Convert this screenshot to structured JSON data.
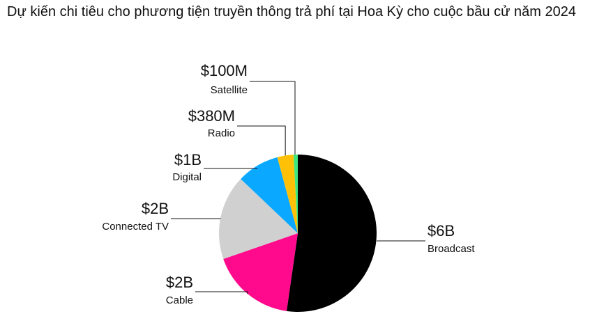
{
  "chart_data": {
    "type": "pie",
    "title": "Dự kiến chi tiêu cho phương tiện truyền thông trả phí tại Hoa Kỳ cho cuộc bầu cử năm 2024",
    "categories": [
      "Broadcast",
      "Cable",
      "Connected TV",
      "Digital",
      "Radio",
      "Satellite"
    ],
    "values": [
      6000000000,
      2000000000,
      2000000000,
      1000000000,
      380000000,
      100000000
    ],
    "value_labels": [
      "$6B",
      "$2B",
      "$2B",
      "$1B",
      "$380M",
      "$100M"
    ],
    "colors": [
      "#000000",
      "#ff0a8c",
      "#d0d0d0",
      "#0aa9ff",
      "#ffc107",
      "#3ee87f"
    ]
  }
}
